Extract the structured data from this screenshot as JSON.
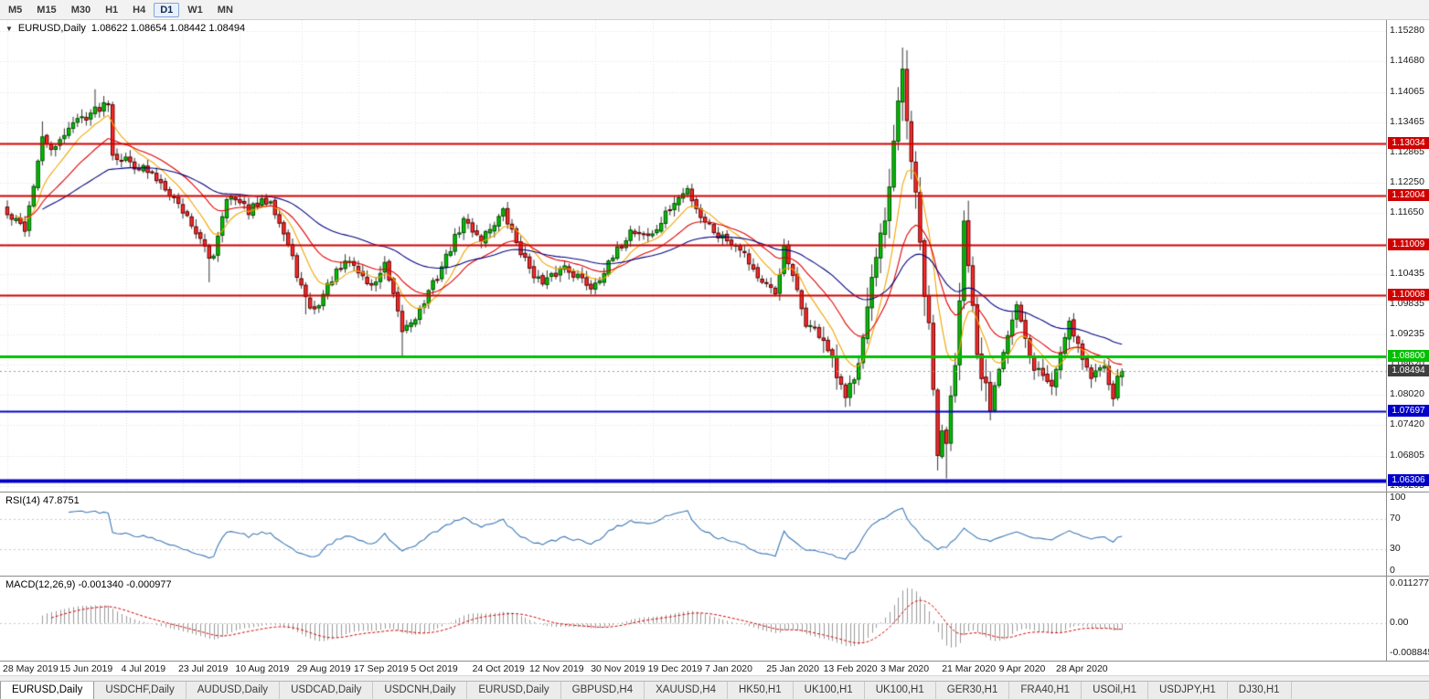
{
  "toolbar": {
    "timeframes": [
      "M5",
      "M15",
      "M30",
      "H1",
      "H4",
      "D1",
      "W1",
      "MN"
    ],
    "active_timeframe": "D1"
  },
  "chart": {
    "symbol_label": "EURUSD,Daily",
    "ohlc": "1.08622 1.08654 1.08442 1.08494",
    "axis_labels": [
      {
        "text": "1.15280",
        "price": 1.1528
      },
      {
        "text": "1.14680",
        "price": 1.1468
      },
      {
        "text": "1.14065",
        "price": 1.14065
      },
      {
        "text": "1.13465",
        "price": 1.13465
      },
      {
        "text": "1.12865",
        "price": 1.12865
      },
      {
        "text": "1.12250",
        "price": 1.1225
      },
      {
        "text": "1.11650",
        "price": 1.1165
      },
      {
        "text": "1.11040",
        "price": 1.1104
      },
      {
        "text": "1.10435",
        "price": 1.10435
      },
      {
        "text": "1.09835",
        "price": 1.09835
      },
      {
        "text": "1.09235",
        "price": 1.09235
      },
      {
        "text": "1.08620",
        "price": 1.0862
      },
      {
        "text": "1.08020",
        "price": 1.0802
      },
      {
        "text": "1.07420",
        "price": 1.0742
      },
      {
        "text": "1.06805",
        "price": 1.06805
      },
      {
        "text": "1.06205",
        "price": 1.06205
      }
    ],
    "hlines": [
      {
        "label": "1.13034",
        "price": 1.13034,
        "color": "#d10000",
        "width": 2
      },
      {
        "label": "1.12004",
        "price": 1.12004,
        "color": "#d10000",
        "width": 2
      },
      {
        "label": "1.11009",
        "price": 1.11009,
        "color": "#d10000",
        "width": 2
      },
      {
        "label": "1.10008",
        "price": 1.10008,
        "color": "#d10000",
        "width": 2
      },
      {
        "label": "1.08800",
        "price": 1.088,
        "color": "#00c000",
        "width": 3
      },
      {
        "label": "1.07697",
        "price": 1.07697,
        "color": "#0000c8",
        "width": 2
      },
      {
        "label": "1.06306",
        "price": 1.06306,
        "color": "#0000c8",
        "width": 4
      }
    ],
    "current_price": {
      "label": "1.08494",
      "value": 1.08494,
      "bg": "#3f3f3f"
    },
    "dates": [
      "28 May 2019",
      "15 Jun 2019",
      "4 Jul 2019",
      "23 Jul 2019",
      "10 Aug 2019",
      "29 Aug 2019",
      "17 Sep 2019",
      "5 Oct 2019",
      "24 Oct 2019",
      "12 Nov 2019",
      "30 Nov 2019",
      "19 Dec 2019",
      "7 Jan 2020",
      "25 Jan 2020",
      "13 Feb 2020",
      "3 Mar 2020",
      "21 Mar 2020",
      "9 Apr 2020",
      "28 Apr 2020"
    ],
    "candles": {
      "count": 255,
      "seed": 42,
      "anchors": [
        [
          0,
          1.116
        ],
        [
          4,
          1.1135
        ],
        [
          8,
          1.131
        ],
        [
          11,
          1.129
        ],
        [
          14,
          1.134
        ],
        [
          20,
          1.137
        ],
        [
          23,
          1.139
        ],
        [
          24,
          1.1285
        ],
        [
          31,
          1.1253
        ],
        [
          36,
          1.122
        ],
        [
          42,
          1.1145
        ],
        [
          46,
          1.1075
        ],
        [
          47,
          1.1085
        ],
        [
          50,
          1.12
        ],
        [
          55,
          1.117
        ],
        [
          60,
          1.1195
        ],
        [
          64,
          1.11
        ],
        [
          68,
          1.099
        ],
        [
          70,
          1.097
        ],
        [
          74,
          1.1035
        ],
        [
          78,
          1.107
        ],
        [
          83,
          1.1017
        ],
        [
          86,
          1.106
        ],
        [
          90,
          1.093
        ],
        [
          94,
          1.097
        ],
        [
          98,
          1.104
        ],
        [
          104,
          1.115
        ],
        [
          108,
          1.1115
        ],
        [
          113,
          1.1166
        ],
        [
          118,
          1.107
        ],
        [
          122,
          1.1021
        ],
        [
          127,
          1.106
        ],
        [
          133,
          1.1018
        ],
        [
          137,
          1.106
        ],
        [
          142,
          1.113
        ],
        [
          147,
          1.112
        ],
        [
          151,
          1.1175
        ],
        [
          155,
          1.1212
        ],
        [
          158,
          1.116
        ],
        [
          162,
          1.1122
        ],
        [
          167,
          1.11
        ],
        [
          172,
          1.1023
        ],
        [
          175,
          1.1005
        ],
        [
          177,
          1.1093
        ],
        [
          182,
          1.0946
        ],
        [
          186,
          1.0915
        ],
        [
          191,
          1.0785
        ],
        [
          194,
          1.088
        ],
        [
          197,
          1.1026
        ],
        [
          200,
          1.113
        ],
        [
          204,
          1.1446
        ],
        [
          207,
          1.1184
        ],
        [
          210,
          1.092
        ],
        [
          212,
          1.0692
        ],
        [
          214,
          1.0727
        ],
        [
          216,
          1.089
        ],
        [
          218,
          1.114
        ],
        [
          221,
          1.086
        ],
        [
          224,
          1.0791
        ],
        [
          227,
          1.09
        ],
        [
          230,
          1.098
        ],
        [
          233,
          1.087
        ],
        [
          238,
          1.0821
        ],
        [
          242,
          1.0955
        ],
        [
          245,
          1.088
        ],
        [
          247,
          1.0834
        ],
        [
          250,
          1.087
        ],
        [
          252,
          1.0805
        ],
        [
          254,
          1.0849
        ]
      ],
      "forced_highs": [
        [
          8,
          1.1348
        ],
        [
          20,
          1.1412
        ],
        [
          204,
          1.1495
        ]
      ],
      "forced_lows": [
        [
          46,
          1.1027
        ],
        [
          68,
          1.0963
        ],
        [
          90,
          1.0879
        ],
        [
          191,
          1.0778
        ],
        [
          214,
          1.0636
        ]
      ]
    },
    "colors": {
      "bull": "#00c200",
      "bear": "#ff2a2a",
      "bull_border": "#004d00",
      "bear_border": "#5c0000",
      "wick": "#333333",
      "ma_fast": "#f0a500",
      "ma_mid": "#e00000",
      "ma_slow": "#000080",
      "grid": "#e3e3e3"
    }
  },
  "rsi": {
    "label": "RSI(14) 47.8751",
    "line_color": "#3c78b4",
    "levels": [
      70,
      30
    ],
    "axis_labels": [
      {
        "text": "100",
        "value": 100
      },
      {
        "text": "70",
        "value": 70
      },
      {
        "text": "30",
        "value": 30
      },
      {
        "text": "0",
        "value": 0
      }
    ]
  },
  "macd": {
    "label": "MACD(12,26,9) -0.001340 -0.000977",
    "histogram_color": "#9a9a9a",
    "signal_color": "#d40000",
    "axis_labels": [
      {
        "text": "0.011277",
        "value": 0.011277
      },
      {
        "text": "0.00",
        "value": 0
      },
      {
        "text": "-0.008845",
        "value": -0.008845
      }
    ]
  },
  "tabs": {
    "items": [
      "EURUSD,Daily",
      "USDCHF,Daily",
      "AUDUSD,Daily",
      "USDCAD,Daily",
      "USDCNH,Daily",
      "EURUSD,Daily",
      "GBPUSD,H4",
      "XAUUSD,H4",
      "HK50,H1",
      "UK100,H1",
      "UK100,H1",
      "GER30,H1",
      "FRA40,H1",
      "USOil,H1",
      "USDJPY,H1",
      "DJ30,H1"
    ],
    "active_index": 0
  }
}
